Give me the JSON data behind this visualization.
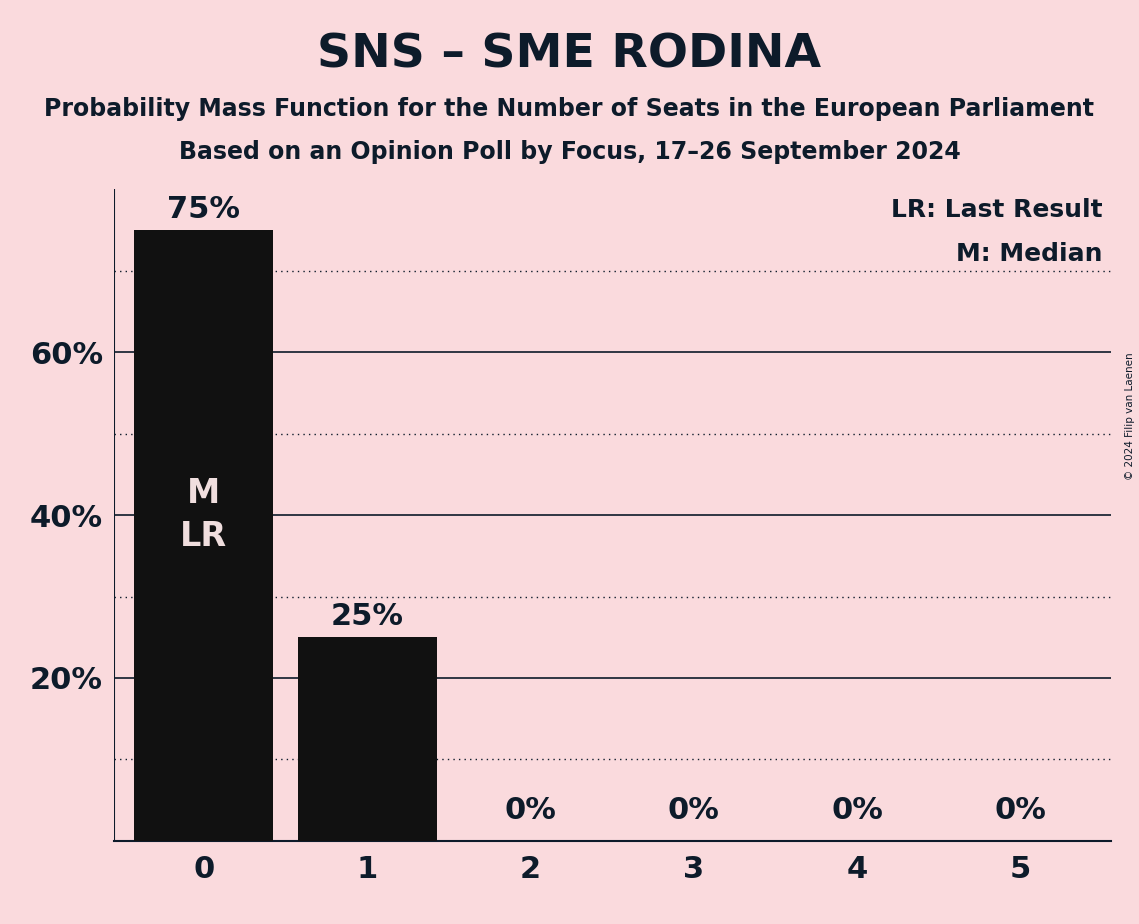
{
  "title": "SNS – SME RODINA",
  "subtitle1": "Probability Mass Function for the Number of Seats in the European Parliament",
  "subtitle2": "Based on an Opinion Poll by Focus, 17–26 September 2024",
  "copyright": "© 2024 Filip van Laenen",
  "categories": [
    0,
    1,
    2,
    3,
    4,
    5
  ],
  "values": [
    75,
    25,
    0,
    0,
    0,
    0
  ],
  "bar_color": "#111111",
  "background_color": "#fadadd",
  "title_color": "#0d1b2a",
  "text_color": "#0d1b2a",
  "bar_label_color_inside": "#f0dede",
  "bar_label_color_outside": "#0d1b2a",
  "ylim": [
    0,
    80
  ],
  "ylabel_ticks": [
    20,
    40,
    60
  ],
  "solid_gridlines": [
    20,
    40,
    60
  ],
  "dotted_gridlines": [
    10,
    30,
    50,
    70
  ],
  "legend_text": [
    "LR: Last Result",
    "M: Median"
  ],
  "median_seat": 0,
  "last_result_seat": 0,
  "title_fontsize": 34,
  "subtitle_fontsize": 17,
  "tick_fontsize": 22,
  "bar_label_fontsize": 22,
  "legend_fontsize": 18,
  "ml_label_fontsize": 24
}
